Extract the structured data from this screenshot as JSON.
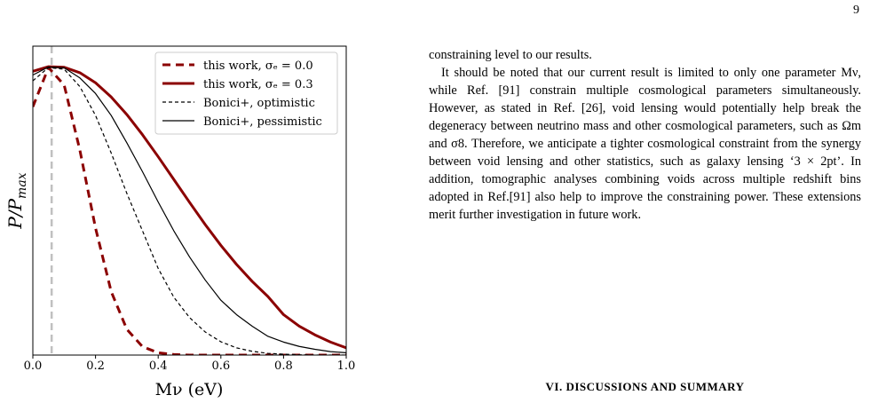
{
  "page_number": "9",
  "chart_data": {
    "type": "line",
    "xlabel": "Mν (eV)",
    "ylabel_main": "P/P",
    "ylabel_sub": "max",
    "x": [
      0,
      0.05,
      0.1,
      0.15,
      0.2,
      0.25,
      0.3,
      0.35,
      0.4,
      0.45,
      0.5,
      0.55,
      0.6,
      0.65,
      0.7,
      0.75,
      0.8,
      0.85,
      0.9,
      0.95,
      1.0
    ],
    "xlim": [
      0,
      1.0
    ],
    "ylim": [
      0,
      1.07
    ],
    "xticks": [
      {
        "value": 0,
        "label": "0.0"
      },
      0.2,
      0.4,
      0.6,
      0.8,
      {
        "value": 1,
        "label": "1.0"
      }
    ],
    "vline": 0.06,
    "vline_color": "#c0c0c0",
    "legend": "upper right",
    "series": [
      {
        "name": "this work, σₑ = 0.0",
        "color": "#8b0000",
        "linestyle": "dashed",
        "linewidth": 3,
        "values": [
          0.86,
          0.996,
          0.935,
          0.71,
          0.44,
          0.22,
          0.089,
          0.029,
          0.008,
          0.002,
          0,
          0,
          0,
          0,
          0,
          0,
          0,
          0,
          0,
          0,
          0
        ]
      },
      {
        "name": "this work, σₑ = 0.3",
        "color": "#8b0000",
        "linestyle": "solid",
        "linewidth": 3,
        "values": [
          0.983,
          0.999,
          0.997,
          0.978,
          0.943,
          0.894,
          0.833,
          0.763,
          0.687,
          0.608,
          0.529,
          0.452,
          0.38,
          0.314,
          0.255,
          0.203,
          0.14,
          0.1,
          0.07,
          0.045,
          0.025
        ]
      },
      {
        "name": "Bonici+, optimistic",
        "color": "#000000",
        "linestyle": "dashed",
        "linewidth": 1.2,
        "values": [
          0.95,
          0.996,
          0.99,
          0.93,
          0.83,
          0.7,
          0.56,
          0.43,
          0.3,
          0.2,
          0.13,
          0.08,
          0.046,
          0.025,
          0.013,
          0.006,
          0.003,
          0.001,
          0,
          0,
          0
        ]
      },
      {
        "name": "Bonici+, pessimistic",
        "color": "#000000",
        "linestyle": "solid",
        "linewidth": 1.2,
        "values": [
          0.97,
          0.998,
          0.995,
          0.96,
          0.906,
          0.83,
          0.735,
          0.635,
          0.53,
          0.43,
          0.34,
          0.26,
          0.19,
          0.14,
          0.1,
          0.065,
          0.045,
          0.03,
          0.02,
          0.012,
          0.008
        ]
      }
    ]
  },
  "text": {
    "paragraphs": [
      "constraining level to our results.",
      "It should be noted that our current result is limited to only one parameter Mν, while Ref. [91] constrain multiple cosmological parameters simultaneously. However, as stated in Ref. [26], void lensing would potentially help break the degeneracy between neutrino mass and other cosmological parameters, such as Ωm and σ8. Therefore, we anticipate a tighter cosmological constraint from the synergy between void lensing and other statistics, such as galaxy lensing ‘3 × 2pt’. In addition, tomographic analyses combining voids across multiple redshift bins adopted in Ref.[91] also help to improve the constraining power. These extensions merit further investigation in future work."
    ],
    "section_heading": "VI.   DISCUSSIONS AND SUMMARY"
  }
}
